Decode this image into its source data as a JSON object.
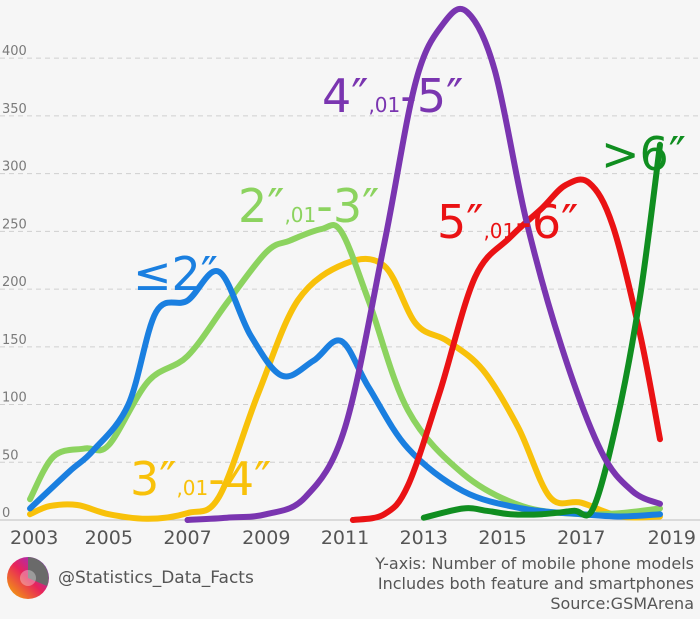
{
  "chart_data": {
    "type": "line",
    "title": "",
    "xlabel": "",
    "ylabel": "",
    "xlim": [
      2003,
      2019
    ],
    "ylim": [
      0,
      440
    ],
    "y_ticks": [
      0,
      50,
      100,
      150,
      200,
      250,
      300,
      350,
      400
    ],
    "x_ticks": [
      "2003",
      "2005",
      "2007",
      "2009",
      "2011",
      "2013",
      "2015",
      "2017",
      "2019"
    ],
    "grid": true,
    "series": [
      {
        "name": "≤2″",
        "color": "#1a7fe0",
        "x": [
          2003,
          2004,
          2004.6,
          2005.5,
          2006.2,
          2007,
          2007.8,
          2008.6,
          2009.4,
          2010.2,
          2010.9,
          2011.6,
          2012.6,
          2014,
          2015.5,
          2017,
          2018,
          2019
        ],
        "y": [
          10,
          42,
          60,
          100,
          180,
          190,
          215,
          160,
          125,
          138,
          155,
          115,
          62,
          25,
          10,
          5,
          3,
          5
        ]
      },
      {
        "name": "2″–3″",
        "color": "#8cd35f",
        "x": [
          2003,
          2003.6,
          2004.4,
          2005,
          2006,
          2007,
          2008,
          2009,
          2009.6,
          2010.4,
          2010.9,
          2011.6,
          2012.6,
          2014,
          2015.5,
          2017,
          2018,
          2019
        ],
        "y": [
          18,
          55,
          62,
          65,
          120,
          142,
          188,
          232,
          242,
          252,
          250,
          190,
          95,
          40,
          12,
          5,
          6,
          10
        ]
      },
      {
        "name": "3″–4″",
        "color": "#f8c10a",
        "x": [
          2003,
          2003.5,
          2004.2,
          2005,
          2006,
          2007,
          2007.8,
          2008.8,
          2009.8,
          2011,
          2012,
          2012.8,
          2013.6,
          2014.5,
          2015.4,
          2016.2,
          2017,
          2018,
          2019
        ],
        "y": [
          5,
          12,
          13,
          5,
          1,
          6,
          20,
          110,
          190,
          222,
          220,
          170,
          155,
          130,
          80,
          20,
          15,
          3,
          3
        ]
      },
      {
        "name": "4″–5″",
        "color": "#7a35b0",
        "x": [
          2007,
          2008,
          2009,
          2010,
          2011,
          2012,
          2012.8,
          2013.5,
          2014.1,
          2014.8,
          2015.6,
          2016.5,
          2017.5,
          2018.3,
          2019
        ],
        "y": [
          0,
          2,
          5,
          20,
          80,
          240,
          380,
          430,
          440,
          390,
          260,
          150,
          60,
          25,
          14
        ]
      },
      {
        "name": "5″–6″",
        "color": "#ea1214",
        "x": [
          2011.2,
          2012,
          2012.6,
          2013.4,
          2014.3,
          2015.2,
          2016,
          2016.6,
          2017.2,
          2017.8,
          2018.5,
          2019
        ],
        "y": [
          0,
          5,
          30,
          110,
          210,
          245,
          270,
          290,
          292,
          255,
          160,
          70
        ]
      },
      {
        "name": ">6″",
        "color": "#108e20",
        "x": [
          2013,
          2014,
          2014.6,
          2015.2,
          2016,
          2016.8,
          2017.3,
          2017.9,
          2018.5,
          2019
        ],
        "y": [
          2,
          10,
          8,
          5,
          5,
          8,
          10,
          85,
          195,
          325
        ]
      }
    ],
    "annotations": [
      {
        "series": 0,
        "text": "≤2″"
      },
      {
        "series": 1,
        "text": "2″,01-3″"
      },
      {
        "series": 2,
        "text": "3″,01-4″"
      },
      {
        "series": 3,
        "text": "4″,01-5″"
      },
      {
        "series": 4,
        "text": "5″,01-6″"
      },
      {
        "series": 5,
        "text": ">6″"
      }
    ]
  },
  "footer": {
    "handle": "@Statistics_Data_Facts",
    "notes": [
      "Y-axis: Number of mobile phone models",
      "Includes both feature and smartphones",
      "Source:GSMArena"
    ]
  }
}
